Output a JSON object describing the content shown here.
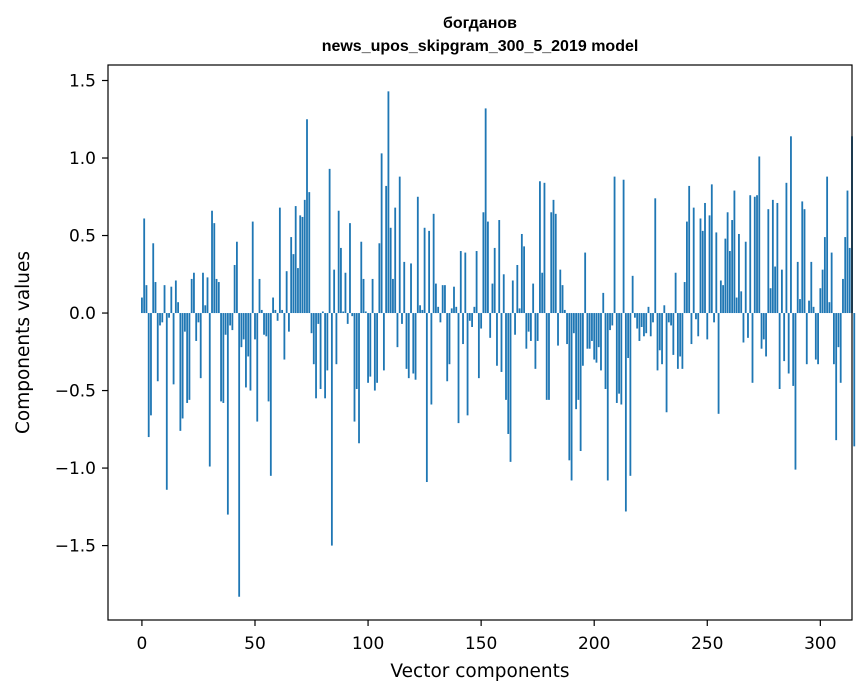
{
  "chart_data": {
    "type": "bar",
    "title": [
      "богданов",
      "news_upos_skipgram_300_5_2019 model"
    ],
    "xlabel": "Vector components",
    "ylabel": "Components values",
    "xlim": [
      -15,
      314
    ],
    "ylim": [
      -1.98,
      1.6
    ],
    "xticks": [
      0,
      50,
      100,
      150,
      200,
      250,
      300
    ],
    "xtick_labels": [
      "0",
      "50",
      "100",
      "150",
      "200",
      "250",
      "300"
    ],
    "yticks": [
      -1.5,
      -1.0,
      -0.5,
      0.0,
      0.5,
      1.0,
      1.5
    ],
    "ytick_labels": [
      "−1.5",
      "−1.0",
      "−0.5",
      "0.0",
      "0.5",
      "1.0",
      "1.5"
    ],
    "grid": false,
    "bar_color": "#1f77b4",
    "values": [
      0.1,
      0.61,
      0.18,
      -0.8,
      -0.66,
      0.45,
      0.2,
      -0.44,
      -0.08,
      -0.06,
      0.18,
      -1.14,
      -0.03,
      0.17,
      -0.46,
      0.21,
      0.07,
      -0.76,
      -0.68,
      -0.12,
      -0.58,
      -0.56,
      0.22,
      0.26,
      -0.18,
      -0.06,
      -0.42,
      0.26,
      0.05,
      0.23,
      -0.99,
      0.66,
      0.58,
      0.22,
      0.2,
      -0.57,
      -0.58,
      -0.14,
      -1.3,
      -0.08,
      -0.11,
      0.31,
      0.46,
      -1.83,
      -0.22,
      -0.17,
      -0.48,
      -0.28,
      -0.5,
      0.59,
      -0.17,
      -0.7,
      0.22,
      0.02,
      -0.14,
      -0.15,
      -0.57,
      -1.05,
      0.1,
      0.02,
      -0.05,
      0.68,
      0.02,
      -0.3,
      0.27,
      -0.12,
      0.49,
      0.38,
      0.69,
      0.29,
      0.63,
      0.62,
      0.73,
      1.25,
      0.78,
      -0.13,
      -0.33,
      -0.55,
      -0.07,
      -0.49,
      0.01,
      -0.55,
      -0.37,
      0.93,
      -1.5,
      0.28,
      -0.33,
      0.66,
      0.42,
      0.01,
      0.26,
      -0.07,
      0.58,
      -0.02,
      -0.7,
      -0.49,
      -0.84,
      0.46,
      0.22,
      0.01,
      -0.45,
      -0.41,
      0.22,
      -0.5,
      -0.45,
      0.45,
      1.03,
      -0.37,
      0.82,
      1.43,
      0.55,
      0.22,
      0.68,
      -0.22,
      0.88,
      -0.07,
      0.33,
      -0.36,
      -0.42,
      0.32,
      -0.39,
      -0.43,
      0.75,
      0.05,
      0.02,
      0.55,
      -1.09,
      0.53,
      -0.59,
      0.64,
      0.19,
      0.04,
      -0.06,
      0.18,
      0.18,
      -0.44,
      -0.33,
      0.03,
      0.17,
      0.04,
      -0.71,
      0.4,
      -0.2,
      0.39,
      -0.66,
      -0.05,
      -0.09,
      0.04,
      0.4,
      -0.42,
      -0.1,
      0.65,
      1.32,
      0.59,
      -0.16,
      0.19,
      0.42,
      -0.34,
      0.6,
      -0.38,
      0.25,
      -0.56,
      -0.78,
      -0.96,
      0.21,
      -0.14,
      0.31,
      0.03,
      0.51,
      0.43,
      -0.23,
      -0.12,
      -0.18,
      0.19,
      -0.36,
      -0.18,
      0.85,
      0.26,
      0.84,
      -0.56,
      -0.56,
      0.65,
      0.73,
      0.64,
      -0.21,
      0.28,
      0.18,
      0.02,
      -0.2,
      -0.95,
      -1.08,
      -0.13,
      -0.62,
      -0.56,
      -0.89,
      -0.34,
      0.39,
      -0.23,
      -0.23,
      -0.18,
      -0.3,
      -0.32,
      -0.22,
      -0.37,
      0.13,
      -0.49,
      -1.08,
      -0.11,
      -0.08,
      0.88,
      -0.58,
      -0.52,
      -0.59,
      0.86,
      -1.28,
      -0.29,
      -1.05,
      0.24,
      -0.03,
      -0.1,
      -0.18,
      -0.09,
      -0.15,
      -0.13,
      0.04,
      -0.15,
      -0.06,
      0.74,
      -0.37,
      -0.24,
      -0.33,
      0.05,
      -0.64,
      -0.06,
      -0.08,
      -0.27,
      0.26,
      -0.36,
      -0.28,
      -0.36,
      0.2,
      0.59,
      0.82,
      -0.2,
      0.68,
      -0.04,
      -0.15,
      0.61,
      0.53,
      0.71,
      -0.17,
      0.63,
      0.83,
      -0.06,
      0.52,
      -0.65,
      0.21,
      0.18,
      0.48,
      0.65,
      0.4,
      0.6,
      0.79,
      0.1,
      0.51,
      0.14,
      -0.19,
      0.46,
      -0.16,
      0.76,
      -0.45,
      0.75,
      0.76,
      1.01,
      -0.23,
      -0.17,
      -0.28,
      0.67,
      0.16,
      0.73,
      0.3,
      0.71,
      -0.49,
      0.28,
      -0.31,
      0.84,
      -0.39,
      1.14,
      -0.47,
      -1.01,
      0.33,
      0.09,
      0.72,
      0.67,
      -0.33,
      0.08,
      0.33,
      0.04,
      -0.3,
      -0.33,
      0.16,
      0.28,
      0.49,
      0.88,
      0.07,
      0.39,
      -0.33,
      -0.82,
      -0.22,
      -0.45,
      0.22,
      0.49,
      0.79,
      0.42,
      1.14,
      -0.86
    ]
  }
}
